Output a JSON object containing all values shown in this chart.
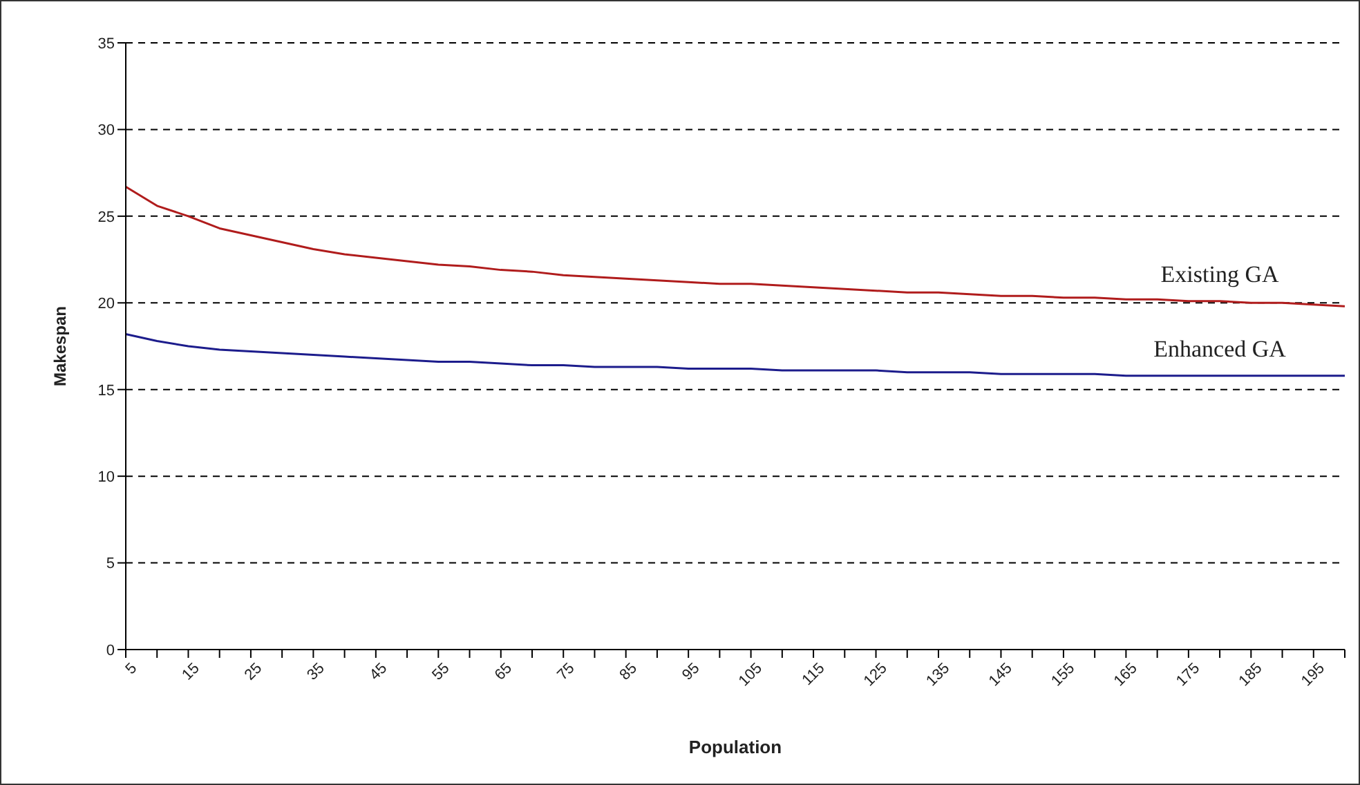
{
  "chart_data": {
    "type": "line",
    "xlabel": "Population",
    "ylabel": "Makespan",
    "categories": [
      "5",
      null,
      "15",
      null,
      "25",
      null,
      "35",
      null,
      "45",
      null,
      "55",
      null,
      "65",
      null,
      "75",
      null,
      "85",
      null,
      "95",
      null,
      "105",
      null,
      "115",
      null,
      "125",
      null,
      "135",
      null,
      "145",
      null,
      "155",
      null,
      "165",
      null,
      "175",
      null,
      "185",
      null,
      "195",
      null
    ],
    "series": [
      {
        "name": "Existing GA",
        "color": "#b01c1c",
        "values": [
          26.7,
          25.6,
          25.0,
          24.3,
          23.9,
          23.5,
          23.1,
          22.8,
          22.6,
          22.4,
          22.2,
          22.1,
          21.9,
          21.8,
          21.6,
          21.5,
          21.4,
          21.3,
          21.2,
          21.1,
          21.1,
          21.0,
          20.9,
          20.8,
          20.7,
          20.6,
          20.6,
          20.5,
          20.4,
          20.4,
          20.3,
          20.3,
          20.2,
          20.2,
          20.1,
          20.1,
          20.0,
          20.0,
          19.9,
          19.8
        ]
      },
      {
        "name": "Enhanced GA",
        "color": "#1c1c8c",
        "values": [
          18.2,
          17.8,
          17.5,
          17.3,
          17.2,
          17.1,
          17.0,
          16.9,
          16.8,
          16.7,
          16.6,
          16.6,
          16.5,
          16.4,
          16.4,
          16.3,
          16.3,
          16.3,
          16.2,
          16.2,
          16.2,
          16.1,
          16.1,
          16.1,
          16.1,
          16.0,
          16.0,
          16.0,
          15.9,
          15.9,
          15.9,
          15.9,
          15.8,
          15.8,
          15.8,
          15.8,
          15.8,
          15.8,
          15.8,
          15.8
        ]
      }
    ],
    "ylim": [
      0,
      35
    ],
    "yticks": [
      0,
      5,
      10,
      15,
      20,
      25,
      30,
      35
    ],
    "grid": "y",
    "legend": false,
    "marker": "none",
    "line_style": "solid"
  }
}
